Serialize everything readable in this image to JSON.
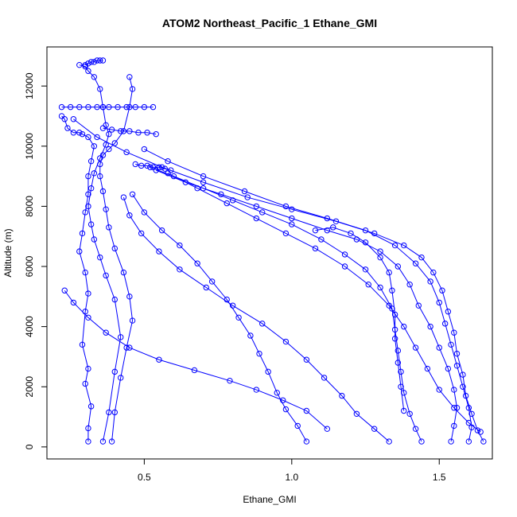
{
  "chart_data": {
    "type": "line",
    "title": "ATOM2 Northeast_Pacific_1 Ethane_GMI",
    "xlabel": "Ethane_GMI",
    "ylabel": "Altitude (m)",
    "xlim": [
      0.17,
      1.68
    ],
    "ylim": [
      -400,
      13300
    ],
    "x_ticks": [
      0.5,
      1.0,
      1.5
    ],
    "x_tick_labels": [
      "0.5",
      "1.0",
      "1.5"
    ],
    "y_ticks": [
      0,
      2000,
      4000,
      6000,
      8000,
      10000,
      12000
    ],
    "y_tick_labels": [
      "0",
      "2000",
      "4000",
      "6000",
      "8000",
      "10000",
      "12000"
    ],
    "grid": false,
    "legend": "none",
    "marker": "open-circle",
    "color": "#0000ff",
    "series": [
      {
        "x": [
          0.31,
          0.31,
          0.32,
          0.3,
          0.31,
          0.29,
          0.3,
          0.31,
          0.3,
          0.28,
          0.29,
          0.3,
          0.31,
          0.31,
          0.32,
          0.33,
          0.31,
          0.29,
          0.28,
          0.26,
          0.24,
          0.23,
          0.22
        ],
        "y": [
          180,
          620,
          1350,
          2100,
          2600,
          3400,
          4500,
          5100,
          5800,
          6500,
          7100,
          7800,
          8400,
          9000,
          9500,
          10000,
          10300,
          10400,
          10450,
          10450,
          10600,
          10900,
          11000
        ]
      },
      {
        "x": [
          0.36,
          0.38,
          0.4,
          0.42,
          0.4,
          0.37,
          0.35,
          0.33,
          0.32,
          0.31,
          0.32,
          0.33,
          0.35,
          0.37,
          0.38,
          0.37,
          0.36,
          0.35,
          0.33,
          0.31,
          0.3,
          0.28
        ],
        "y": [
          180,
          1150,
          2500,
          3650,
          4900,
          5700,
          6300,
          6900,
          7400,
          8000,
          8600,
          9100,
          9600,
          10050,
          10400,
          10700,
          11300,
          11900,
          12300,
          12500,
          12650,
          12700
        ]
      },
      {
        "x": [
          0.39,
          0.4,
          0.42,
          0.44,
          0.46,
          0.45,
          0.43,
          0.4,
          0.38,
          0.37,
          0.36,
          0.35,
          0.35,
          0.36,
          0.38,
          0.4,
          0.43,
          0.45,
          0.46,
          0.45
        ],
        "y": [
          180,
          1150,
          2300,
          3300,
          4200,
          5000,
          5800,
          6600,
          7300,
          7900,
          8500,
          9000,
          9400,
          9700,
          9900,
          10100,
          10500,
          11300,
          11900,
          12300
        ]
      },
      {
        "x": [
          0.23,
          0.26,
          0.31,
          0.37,
          0.45,
          0.55,
          0.67,
          0.79,
          0.88,
          0.97,
          1.05,
          1.12
        ],
        "y": [
          5200,
          4800,
          4300,
          3800,
          3300,
          2900,
          2550,
          2200,
          1900,
          1550,
          1200,
          600
        ]
      },
      {
        "x": [
          1.05,
          1.02,
          0.98,
          0.95,
          0.92,
          0.89,
          0.86,
          0.82,
          0.78,
          0.73,
          0.68,
          0.62,
          0.56,
          0.5,
          0.46
        ],
        "y": [
          180,
          700,
          1250,
          1800,
          2500,
          3100,
          3700,
          4300,
          4900,
          5500,
          6100,
          6700,
          7200,
          7800,
          8400
        ]
      },
      {
        "x": [
          1.33,
          1.28,
          1.22,
          1.17,
          1.11,
          1.05,
          0.98,
          0.9,
          0.8,
          0.71,
          0.62,
          0.55,
          0.49,
          0.45,
          0.43
        ],
        "y": [
          180,
          600,
          1100,
          1700,
          2300,
          2900,
          3500,
          4100,
          4700,
          5300,
          5900,
          6500,
          7100,
          7700,
          8300
        ]
      },
      {
        "x": [
          1.44,
          1.42,
          1.4,
          1.38,
          1.37,
          1.36,
          1.35,
          1.34,
          1.3,
          1.25,
          1.18,
          1.1,
          1.0,
          0.9,
          0.8,
          0.7,
          0.6,
          0.52
        ],
        "y": [
          180,
          600,
          1100,
          1800,
          2500,
          3200,
          3900,
          4600,
          5300,
          5900,
          6400,
          6900,
          7400,
          7800,
          8200,
          8600,
          9000,
          9300
        ]
      },
      {
        "x": [
          1.54,
          1.55,
          1.56,
          1.55,
          1.53,
          1.5,
          1.47,
          1.43,
          1.4,
          1.36,
          1.3,
          1.22,
          1.12,
          1.0,
          0.88,
          0.76,
          0.64,
          0.54
        ],
        "y": [
          180,
          700,
          1300,
          1900,
          2600,
          3300,
          4000,
          4700,
          5400,
          6000,
          6500,
          6900,
          7200,
          7600,
          8000,
          8400,
          8800,
          9200
        ]
      },
      {
        "x": [
          1.6,
          1.61,
          1.6,
          1.58,
          1.56,
          1.54,
          1.52,
          1.5,
          1.47,
          1.42,
          1.35,
          1.25,
          1.12,
          0.98,
          0.84,
          0.7,
          0.58,
          0.5
        ],
        "y": [
          180,
          650,
          1300,
          2000,
          2700,
          3400,
          4100,
          4800,
          5500,
          6100,
          6700,
          7200,
          7600,
          8000,
          8500,
          9000,
          9500,
          9900
        ]
      },
      {
        "x": [
          1.65,
          1.63,
          1.61,
          1.59,
          1.58,
          1.56,
          1.55,
          1.53,
          1.51,
          1.48,
          1.44,
          1.38,
          1.28,
          1.15,
          1.0,
          0.85,
          0.7,
          0.56,
          0.44,
          0.34,
          0.26
        ],
        "y": [
          180,
          550,
          1100,
          1700,
          2400,
          3100,
          3800,
          4500,
          5200,
          5800,
          6300,
          6700,
          7100,
          7500,
          7900,
          8300,
          8800,
          9300,
          9800,
          10300,
          10900
        ]
      },
      {
        "x": [
          1.64,
          1.6,
          1.55,
          1.5,
          1.46,
          1.42,
          1.38,
          1.33,
          1.26,
          1.18,
          1.08,
          0.98,
          0.88,
          0.78,
          0.68,
          0.58
        ],
        "y": [
          500,
          800,
          1300,
          1900,
          2600,
          3300,
          4000,
          4700,
          5400,
          6000,
          6600,
          7100,
          7600,
          8100,
          8600,
          9100
        ]
      },
      {
        "x": [
          1.38,
          1.37,
          1.36,
          1.35,
          1.35,
          1.34,
          1.33,
          1.3,
          1.25,
          1.2,
          1.14,
          1.08
        ],
        "y": [
          1200,
          2000,
          2800,
          3600,
          4400,
          5200,
          5800,
          6300,
          6800,
          7100,
          7300,
          7200
        ]
      },
      {
        "x": [
          0.22,
          0.25,
          0.28,
          0.31,
          0.34,
          0.36,
          0.38,
          0.41,
          0.44,
          0.47,
          0.5,
          0.53
        ],
        "y": [
          11300,
          11300,
          11300,
          11300,
          11300,
          11300,
          11300,
          11300,
          11300,
          11300,
          11300,
          11300
        ]
      },
      {
        "x": [
          0.36,
          0.39,
          0.42,
          0.45,
          0.48,
          0.51,
          0.54
        ],
        "y": [
          10600,
          10550,
          10500,
          10500,
          10450,
          10450,
          10400
        ]
      },
      {
        "x": [
          0.3,
          0.31,
          0.32,
          0.33,
          0.34,
          0.35,
          0.36
        ],
        "y": [
          12700,
          12750,
          12800,
          12800,
          12850,
          12850,
          12850
        ]
      },
      {
        "x": [
          0.47,
          0.49,
          0.51,
          0.53,
          0.55,
          0.57,
          0.59
        ],
        "y": [
          9400,
          9350,
          9350,
          9300,
          9300,
          9250,
          9200
        ]
      }
    ]
  }
}
